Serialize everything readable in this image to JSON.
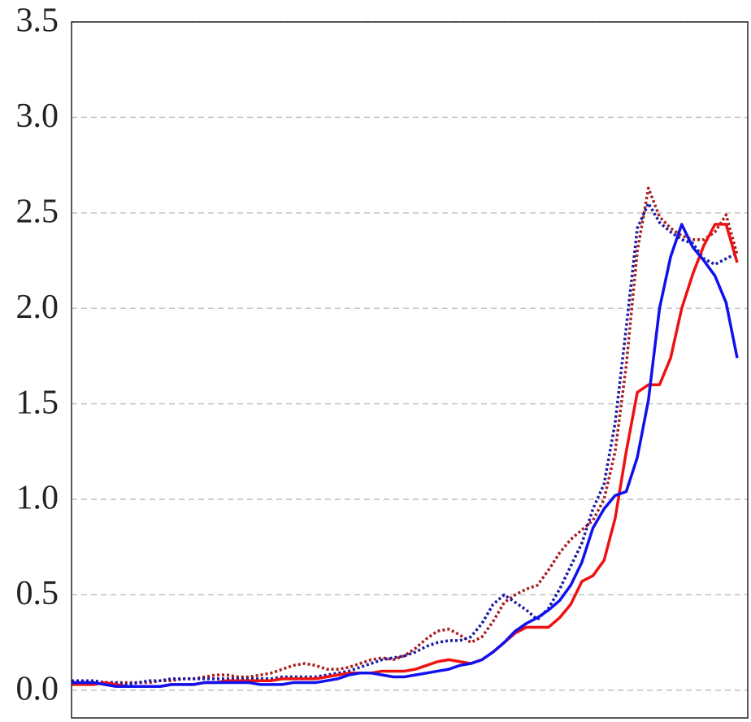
{
  "chart_data": {
    "type": "line",
    "grid": true,
    "ylim": [
      -0.145,
      3.5
    ],
    "yticks": [
      {
        "value": 0,
        "label": "0.0"
      },
      0.5,
      {
        "value": 1,
        "label": "1.0"
      },
      1.5,
      {
        "value": 2,
        "label": "2.0"
      },
      2.5,
      {
        "value": 3,
        "label": "3.0"
      },
      3.5
    ],
    "series": [
      {
        "color": "#a81c1c",
        "dash": "dotted",
        "values": [
          0.05,
          0.05,
          0.05,
          0.04,
          0.04,
          0.04,
          0.04,
          0.04,
          0.05,
          0.05,
          0.06,
          0.06,
          0.07,
          0.08,
          0.08,
          0.07,
          0.07,
          0.08,
          0.09,
          0.11,
          0.13,
          0.14,
          0.13,
          0.11,
          0.11,
          0.12,
          0.14,
          0.16,
          0.17,
          0.16,
          0.18,
          0.22,
          0.27,
          0.31,
          0.32,
          0.29,
          0.25,
          0.28,
          0.36,
          0.46,
          0.5,
          0.53,
          0.55,
          0.63,
          0.72,
          0.79,
          0.84,
          0.89,
          1.0,
          1.25,
          1.7,
          2.3,
          2.63,
          2.48,
          2.42,
          2.38,
          2.36,
          2.36,
          2.4,
          2.49,
          2.28
        ]
      },
      {
        "color": "#1a1aa8",
        "dash": "dotted",
        "values": [
          0.05,
          0.05,
          0.05,
          0.04,
          0.04,
          0.03,
          0.04,
          0.05,
          0.05,
          0.06,
          0.06,
          0.06,
          0.06,
          0.06,
          0.06,
          0.06,
          0.06,
          0.06,
          0.06,
          0.07,
          0.07,
          0.07,
          0.07,
          0.08,
          0.09,
          0.1,
          0.12,
          0.14,
          0.16,
          0.17,
          0.18,
          0.2,
          0.23,
          0.25,
          0.26,
          0.26,
          0.28,
          0.35,
          0.45,
          0.5,
          0.46,
          0.42,
          0.37,
          0.43,
          0.53,
          0.65,
          0.77,
          0.95,
          1.08,
          1.4,
          1.9,
          2.42,
          2.55,
          2.45,
          2.4,
          2.36,
          2.34,
          2.26,
          2.23,
          2.26,
          2.29
        ]
      },
      {
        "color": "#ee1111",
        "dash": "solid",
        "values": [
          0.03,
          0.03,
          0.03,
          0.04,
          0.03,
          0.02,
          0.02,
          0.02,
          0.02,
          0.03,
          0.03,
          0.03,
          0.04,
          0.04,
          0.05,
          0.05,
          0.05,
          0.05,
          0.05,
          0.06,
          0.06,
          0.06,
          0.06,
          0.07,
          0.08,
          0.09,
          0.09,
          0.09,
          0.1,
          0.1,
          0.1,
          0.11,
          0.13,
          0.15,
          0.16,
          0.15,
          0.14,
          0.16,
          0.2,
          0.25,
          0.3,
          0.33,
          0.33,
          0.33,
          0.38,
          0.45,
          0.57,
          0.6,
          0.68,
          0.9,
          1.25,
          1.56,
          1.6,
          1.6,
          1.74,
          2.0,
          2.18,
          2.33,
          2.44,
          2.44,
          2.24
        ]
      },
      {
        "color": "#1111ee",
        "dash": "solid",
        "values": [
          0.04,
          0.04,
          0.04,
          0.03,
          0.02,
          0.02,
          0.02,
          0.02,
          0.02,
          0.03,
          0.03,
          0.03,
          0.04,
          0.04,
          0.04,
          0.04,
          0.04,
          0.03,
          0.03,
          0.03,
          0.04,
          0.04,
          0.04,
          0.05,
          0.06,
          0.08,
          0.09,
          0.09,
          0.08,
          0.07,
          0.07,
          0.08,
          0.09,
          0.1,
          0.11,
          0.13,
          0.14,
          0.16,
          0.2,
          0.25,
          0.31,
          0.35,
          0.38,
          0.42,
          0.47,
          0.55,
          0.67,
          0.85,
          0.95,
          1.02,
          1.04,
          1.22,
          1.52,
          2.0,
          2.27,
          2.44,
          2.32,
          2.25,
          2.17,
          2.03,
          1.74
        ]
      }
    ]
  }
}
